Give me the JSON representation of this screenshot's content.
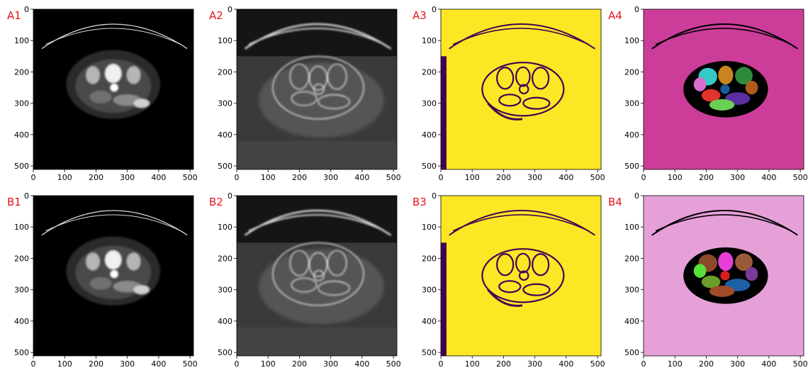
{
  "figure": {
    "panels": [
      {
        "label": "A1",
        "kind": "ct"
      },
      {
        "label": "A2",
        "kind": "edge"
      },
      {
        "label": "A3",
        "kind": "binary"
      },
      {
        "label": "A4",
        "kind": "segments_a"
      },
      {
        "label": "B1",
        "kind": "ct"
      },
      {
        "label": "B2",
        "kind": "edge"
      },
      {
        "label": "B3",
        "kind": "binary"
      },
      {
        "label": "B4",
        "kind": "segments_b"
      }
    ],
    "axis": {
      "x_ticks": [
        "0",
        "100",
        "200",
        "300",
        "400",
        "500"
      ],
      "y_ticks": [
        "0",
        "100",
        "200",
        "300",
        "400",
        "500"
      ],
      "range": [
        0,
        511
      ]
    },
    "colors": {
      "label": "#e8141a",
      "binary_fg": "#fde725",
      "binary_bg": "#440154",
      "segment_a_bg": "#cc3d9a",
      "segment_b_bg": "#e6a0d8"
    }
  }
}
